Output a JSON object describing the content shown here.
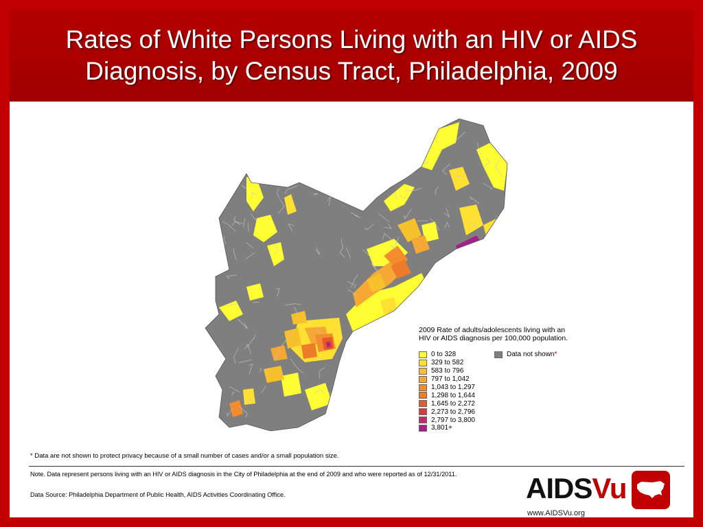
{
  "title": {
    "line1": "Rates of White Persons Living with an HIV or AIDS",
    "line2": "Diagnosis, by Census Tract, Philadelphia, 2009"
  },
  "legend": {
    "title_line1": "2009 Rate of adults/adolescents living with an",
    "title_line2": "HIV or AIDS diagnosis per 100,000 population.",
    "items": [
      {
        "label": "0 to 328",
        "color": "#ffff33"
      },
      {
        "label": "329 to 582",
        "color": "#ffe033"
      },
      {
        "label": "583 to 796",
        "color": "#f7c12e"
      },
      {
        "label": "797 to 1,042",
        "color": "#f5a833"
      },
      {
        "label": "1,043 to 1,297",
        "color": "#f28c2e"
      },
      {
        "label": "1,298 to 1,644",
        "color": "#ee7b29"
      },
      {
        "label": "1,645 to 2,272",
        "color": "#e55a2b"
      },
      {
        "label": "2,273 to 2,796",
        "color": "#d43c45"
      },
      {
        "label": "2,797 to 3,800",
        "color": "#c22a6e"
      },
      {
        "label": "3,801+",
        "color": "#a3218a"
      }
    ],
    "not_shown_label": "Data not shown",
    "not_shown_asterisk": "*",
    "not_shown_color": "#7f7f7f"
  },
  "footnote": "* Data are not shown to protect privacy because of a small number of cases and/or a small population size.",
  "note": "Note. Data represent persons living with an HIV or AIDS diagnosis in the City of Philadelphia at the end of 2009 and who were reported as of 12/31/2011.",
  "source": "Data Source: Philadelphia Department of Public Health, AIDS Activities Coordinating Office.",
  "logo": {
    "part1": "AIDS",
    "part2": "Vu",
    "url": "www.AIDSVu.org",
    "accent": "#c00000"
  }
}
